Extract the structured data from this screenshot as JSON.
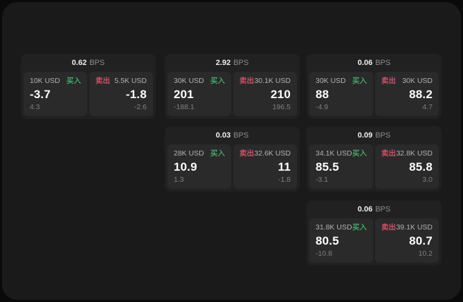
{
  "labels": {
    "bps_unit": "BPS",
    "buy": "买入",
    "sell": "卖出"
  },
  "colors": {
    "background": "#0a0a0a",
    "panel": "#1a1a1a",
    "card": "#212121",
    "tile": "#2a2a2a",
    "buy_accent": "#44a268",
    "sell_accent": "#cc5068"
  },
  "cards": [
    {
      "bps": "0.62",
      "buy": {
        "amount": "10K USD",
        "value": "-3.7",
        "sub": "4.3"
      },
      "sell": {
        "amount": "5.5K USD",
        "value": "-1.8",
        "sub": "-2.6"
      }
    },
    {
      "bps": "2.92",
      "buy": {
        "amount": "30K USD",
        "value": "201",
        "sub": "-188.1"
      },
      "sell": {
        "amount": "30.1K USD",
        "value": "210",
        "sub": "196.5"
      }
    },
    {
      "bps": "0.06",
      "buy": {
        "amount": "30K USD",
        "value": "88",
        "sub": "-4.9"
      },
      "sell": {
        "amount": "30K USD",
        "value": "88.2",
        "sub": "4.7"
      }
    },
    {
      "bps": "0.03",
      "buy": {
        "amount": "28K USD",
        "value": "10.9",
        "sub": "1.3"
      },
      "sell": {
        "amount": "32.6K USD",
        "value": "11",
        "sub": "-1.8"
      }
    },
    {
      "bps": "0.09",
      "buy": {
        "amount": "34.1K USD",
        "value": "85.5",
        "sub": "-3.1"
      },
      "sell": {
        "amount": "32.8K USD",
        "value": "85.8",
        "sub": "3.0"
      }
    },
    {
      "bps": "0.06",
      "buy": {
        "amount": "31.8K USD",
        "value": "80.5",
        "sub": "-10.8"
      },
      "sell": {
        "amount": "39.1K USD",
        "value": "80.7",
        "sub": "10.2"
      }
    }
  ]
}
